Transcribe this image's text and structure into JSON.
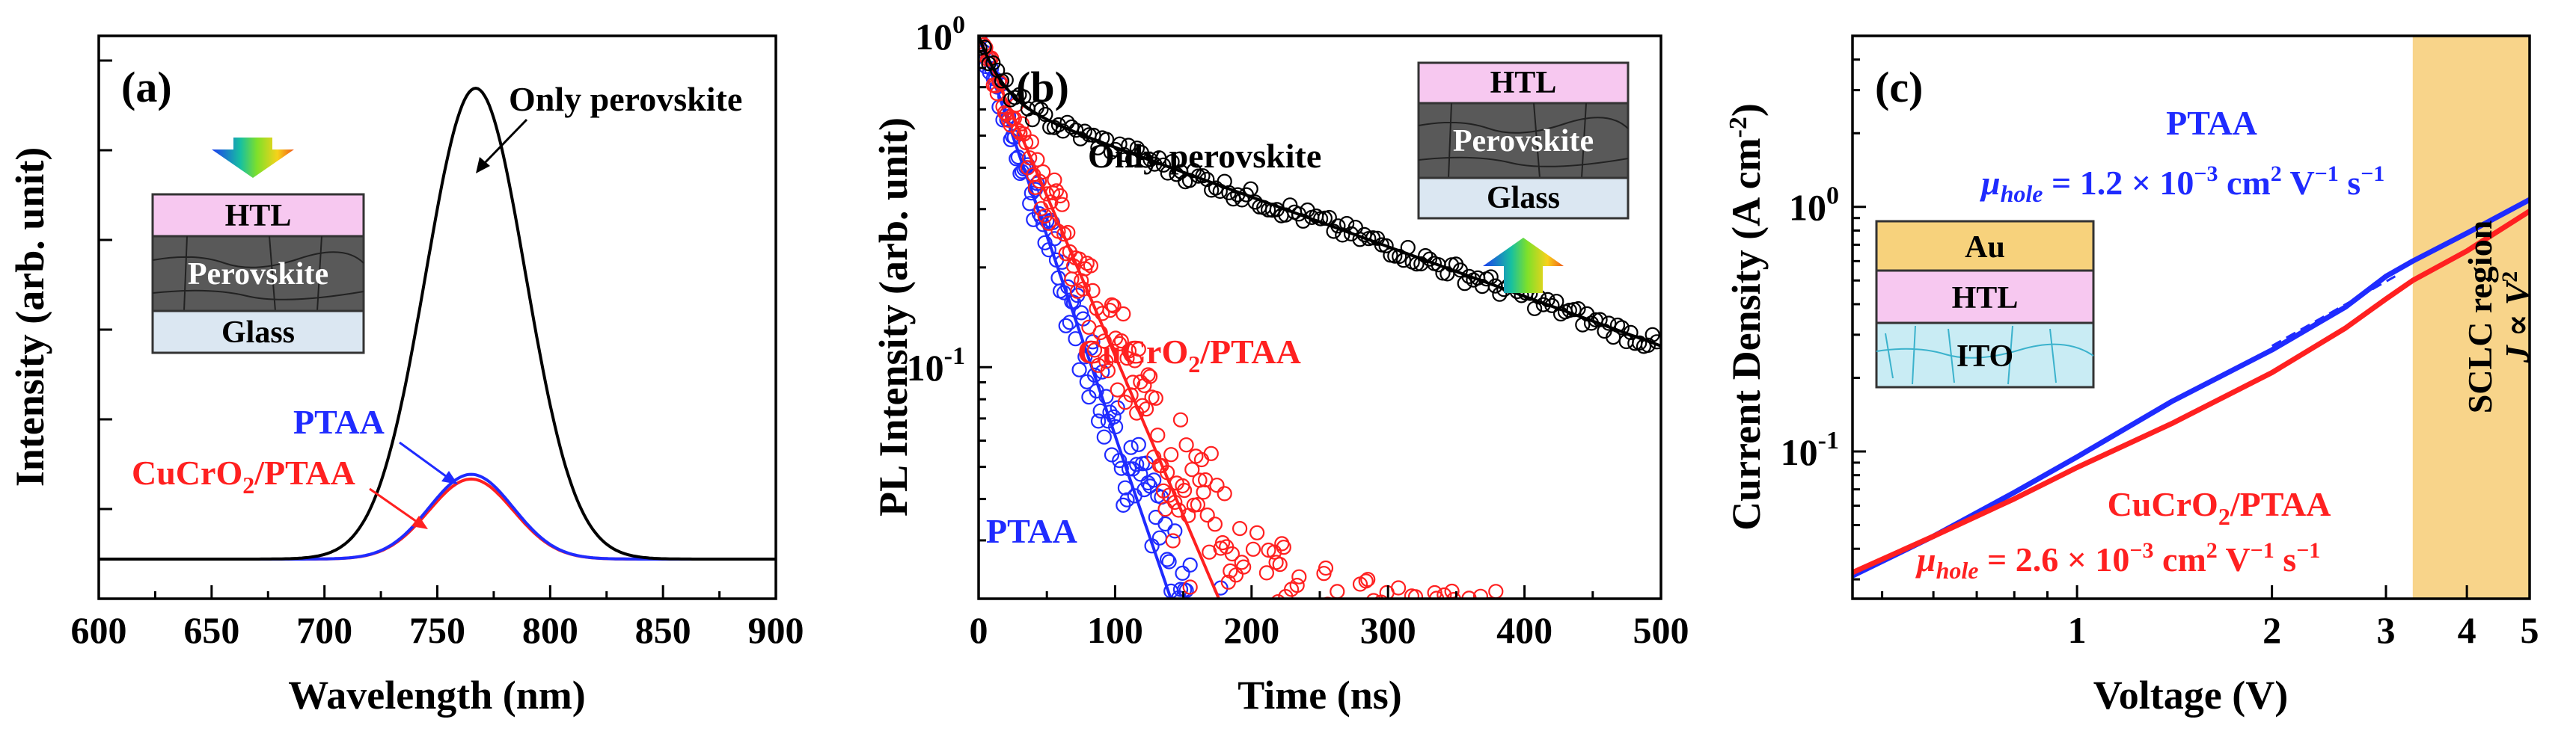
{
  "colors": {
    "black": "#000000",
    "red": "#ff2020",
    "blue": "#1f2bff",
    "htl": "#f7c8f0",
    "perovskite": "#595959",
    "glass": "#dbe7f2",
    "au": "#f7d27c",
    "ito": "#c9ecf4",
    "sclc": "#f8d48a"
  },
  "chart_data": [
    {
      "panel": "(a)",
      "type": "line",
      "xlabel": "Wavelength (nm)",
      "ylabel": "Intensity (arb. unit)",
      "xlim": [
        600,
        900
      ],
      "ylim": [
        0,
        1.05
      ],
      "xticks": [
        "600",
        "650",
        "700",
        "750",
        "800",
        "850",
        "900"
      ],
      "series": [
        {
          "name": "Only perovskite",
          "color": "#000000",
          "peak_wavelength_nm": 767,
          "peak_intensity": 1.0,
          "fwhm_nm": 52
        },
        {
          "name": "PTAA",
          "color": "#1f2bff",
          "peak_wavelength_nm": 765,
          "peak_intensity": 0.18,
          "fwhm_nm": 44
        },
        {
          "name": "CuCrO2/PTAA",
          "color": "#ff2020",
          "peak_wavelength_nm": 765,
          "peak_intensity": 0.17,
          "fwhm_nm": 44
        }
      ],
      "annotations": {
        "only": "Only perovskite",
        "ptaa": "PTAA",
        "cucro": "CuCrO",
        "cucro_sub": "2",
        "cucro_tail": "/PTAA"
      },
      "inset": {
        "htl": "HTL",
        "perovskite": "Perovskite",
        "glass": "Glass"
      }
    },
    {
      "panel": "(b)",
      "type": "scatter",
      "xlabel": "Time (ns)",
      "ylabel": "PL Intensity (arb. unit)",
      "xlim": [
        0,
        500
      ],
      "ylim_log": [
        0.02,
        1
      ],
      "xticks": [
        "0",
        "100",
        "200",
        "300",
        "400",
        "500"
      ],
      "yticks": [
        {
          "base": "10",
          "exp": "0",
          "value": 1
        },
        {
          "base": "10",
          "exp": "-1",
          "value": 0.1
        }
      ],
      "series": [
        {
          "name": "Only perovskite",
          "color": "#000000",
          "tau1_ns": 15,
          "a1": 0.35,
          "tau2_ns": 290,
          "a2": 0.65
        },
        {
          "name": "CuCrO2/PTAA",
          "color": "#ff2020",
          "tau1_ns": 45,
          "a1": 1.0,
          "floor": 0.018
        },
        {
          "name": "PTAA",
          "color": "#1f2bff",
          "tau1_ns": 36,
          "a1": 1.0,
          "floor": 0.01
        }
      ],
      "annotations": {
        "only": "Only perovskite",
        "ptaa": "PTAA",
        "cucro": "CuCrO",
        "cucro_sub": "2",
        "cucro_tail": "/PTAA"
      },
      "inset": {
        "htl": "HTL",
        "perovskite": "Perovskite",
        "glass": "Glass"
      }
    },
    {
      "panel": "(c)",
      "type": "line",
      "xlabel": "Voltage (V)",
      "ylabel": "Current Density (A cm",
      "ylabel_sup": "-2",
      "ylabel_tail": ")",
      "xlim_log": [
        0.45,
        5
      ],
      "ylim_log": [
        0.025,
        5
      ],
      "xticks": [
        {
          "label": "1",
          "value": 1
        },
        {
          "label": "2",
          "value": 2
        },
        {
          "label": "3",
          "value": 3
        },
        {
          "label": "4",
          "value": 4
        },
        {
          "label": "5",
          "value": 5
        }
      ],
      "yticks": [
        {
          "base": "10",
          "exp": "0",
          "value": 1
        },
        {
          "base": "10",
          "exp": "-1",
          "value": 0.1
        }
      ],
      "series": [
        {
          "name": "PTAA",
          "color": "#1f2bff",
          "x": [
            0.45,
            0.6,
            0.8,
            1.0,
            1.4,
            2.0,
            2.6,
            3.0,
            3.3,
            4.0,
            5.0
          ],
          "y": [
            0.031,
            0.045,
            0.068,
            0.095,
            0.16,
            0.26,
            0.39,
            0.52,
            0.6,
            0.78,
            1.07
          ]
        },
        {
          "name": "CuCrO2/PTAA",
          "color": "#ff2020",
          "x": [
            0.45,
            0.6,
            0.8,
            1.0,
            1.4,
            2.0,
            2.6,
            3.0,
            3.3,
            4.0,
            5.0
          ],
          "y": [
            0.032,
            0.045,
            0.064,
            0.086,
            0.13,
            0.21,
            0.32,
            0.42,
            0.5,
            0.66,
            0.96
          ]
        }
      ],
      "fit_line": {
        "x": [
          2.0,
          3.1
        ],
        "y": [
          0.27,
          0.52
        ]
      },
      "sclc_region": {
        "x_start": 3.3,
        "x_end": 5.0,
        "label": "SCLC region",
        "law_j": "J",
        "law_prop": " ∝ ",
        "law_v": "V",
        "law_exp": "2"
      },
      "annotations": {
        "ptaa": "PTAA",
        "ptaa_mu": "μ",
        "ptaa_mu_sub": "hole",
        "ptaa_mu_val": " = 1.2 × 10",
        "ptaa_mu_exp": "−3",
        "ptaa_mu_unit": " cm",
        "ptaa_mu_unit_exp": "2",
        "ptaa_mu_unit2": " V",
        "ptaa_mu_unit2_exp": "−1",
        "ptaa_mu_unit3": " s",
        "ptaa_mu_unit3_exp": "−1",
        "cucro": "CuCrO",
        "cucro_sub": "2",
        "cucro_tail": "/PTAA",
        "cucro_mu": "μ",
        "cucro_mu_sub": "hole",
        "cucro_mu_val": " = 2.6 × 10",
        "cucro_mu_exp": "−3",
        "cucro_mu_unit": " cm",
        "cucro_mu_unit_exp": "2",
        "cucro_mu_unit2": " V",
        "cucro_mu_unit2_exp": "−1",
        "cucro_mu_unit3": " s",
        "cucro_mu_unit3_exp": "−1"
      },
      "inset": {
        "au": "Au",
        "htl": "HTL",
        "ito": "ITO"
      }
    }
  ]
}
